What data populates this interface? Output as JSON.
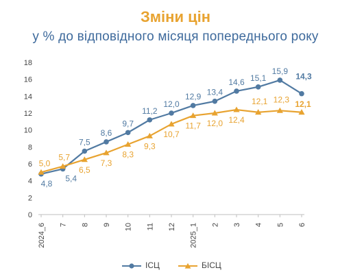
{
  "chart": {
    "title": "Зміни цін",
    "subtitle": "у % до відповідного місяця попереднього року"
  },
  "colors": {
    "title": "#E8A330",
    "subtitle": "#3E6A9C",
    "cpi": "#517AA2",
    "core_cpi": "#E8A330",
    "axis_text": "#444444",
    "grid": "#D9D9D9"
  },
  "chart_data": {
    "type": "line",
    "title": "Зміни цін",
    "subtitle": "у % до відповідного місяця попереднього року",
    "categories": [
      "2024_6",
      "7",
      "8",
      "9",
      "10",
      "11",
      "12",
      "2025_1",
      "2",
      "3",
      "4",
      "5",
      "6"
    ],
    "ylim": [
      0,
      18
    ],
    "yticks": [
      0,
      2,
      4,
      6,
      8,
      10,
      12,
      14,
      16,
      18
    ],
    "grid": false,
    "legend_position": "bottom",
    "series": [
      {
        "name": "ІСЦ",
        "marker": "circle",
        "values": [
          4.8,
          5.4,
          7.5,
          8.6,
          9.7,
          11.2,
          12.0,
          12.9,
          13.4,
          14.6,
          15.1,
          15.9,
          14.3
        ],
        "labels": [
          "4,8",
          "5,4",
          "7,5",
          "8,6",
          "9,7",
          "11,2",
          "12,0",
          "12,9",
          "13,4",
          "14,6",
          "15,1",
          "15,9",
          "14,3"
        ]
      },
      {
        "name": "БІСЦ",
        "marker": "triangle",
        "values": [
          5.0,
          5.7,
          6.5,
          7.3,
          8.3,
          9.3,
          10.7,
          11.7,
          12.0,
          12.4,
          12.1,
          12.3,
          12.1
        ],
        "labels": [
          "5,0",
          "5,7",
          "6,5",
          "7,3",
          "8,3",
          "9,3",
          "10,7",
          "11,7",
          "12,0",
          "12,4",
          "12,1",
          "12,3",
          "12,1"
        ]
      }
    ]
  }
}
